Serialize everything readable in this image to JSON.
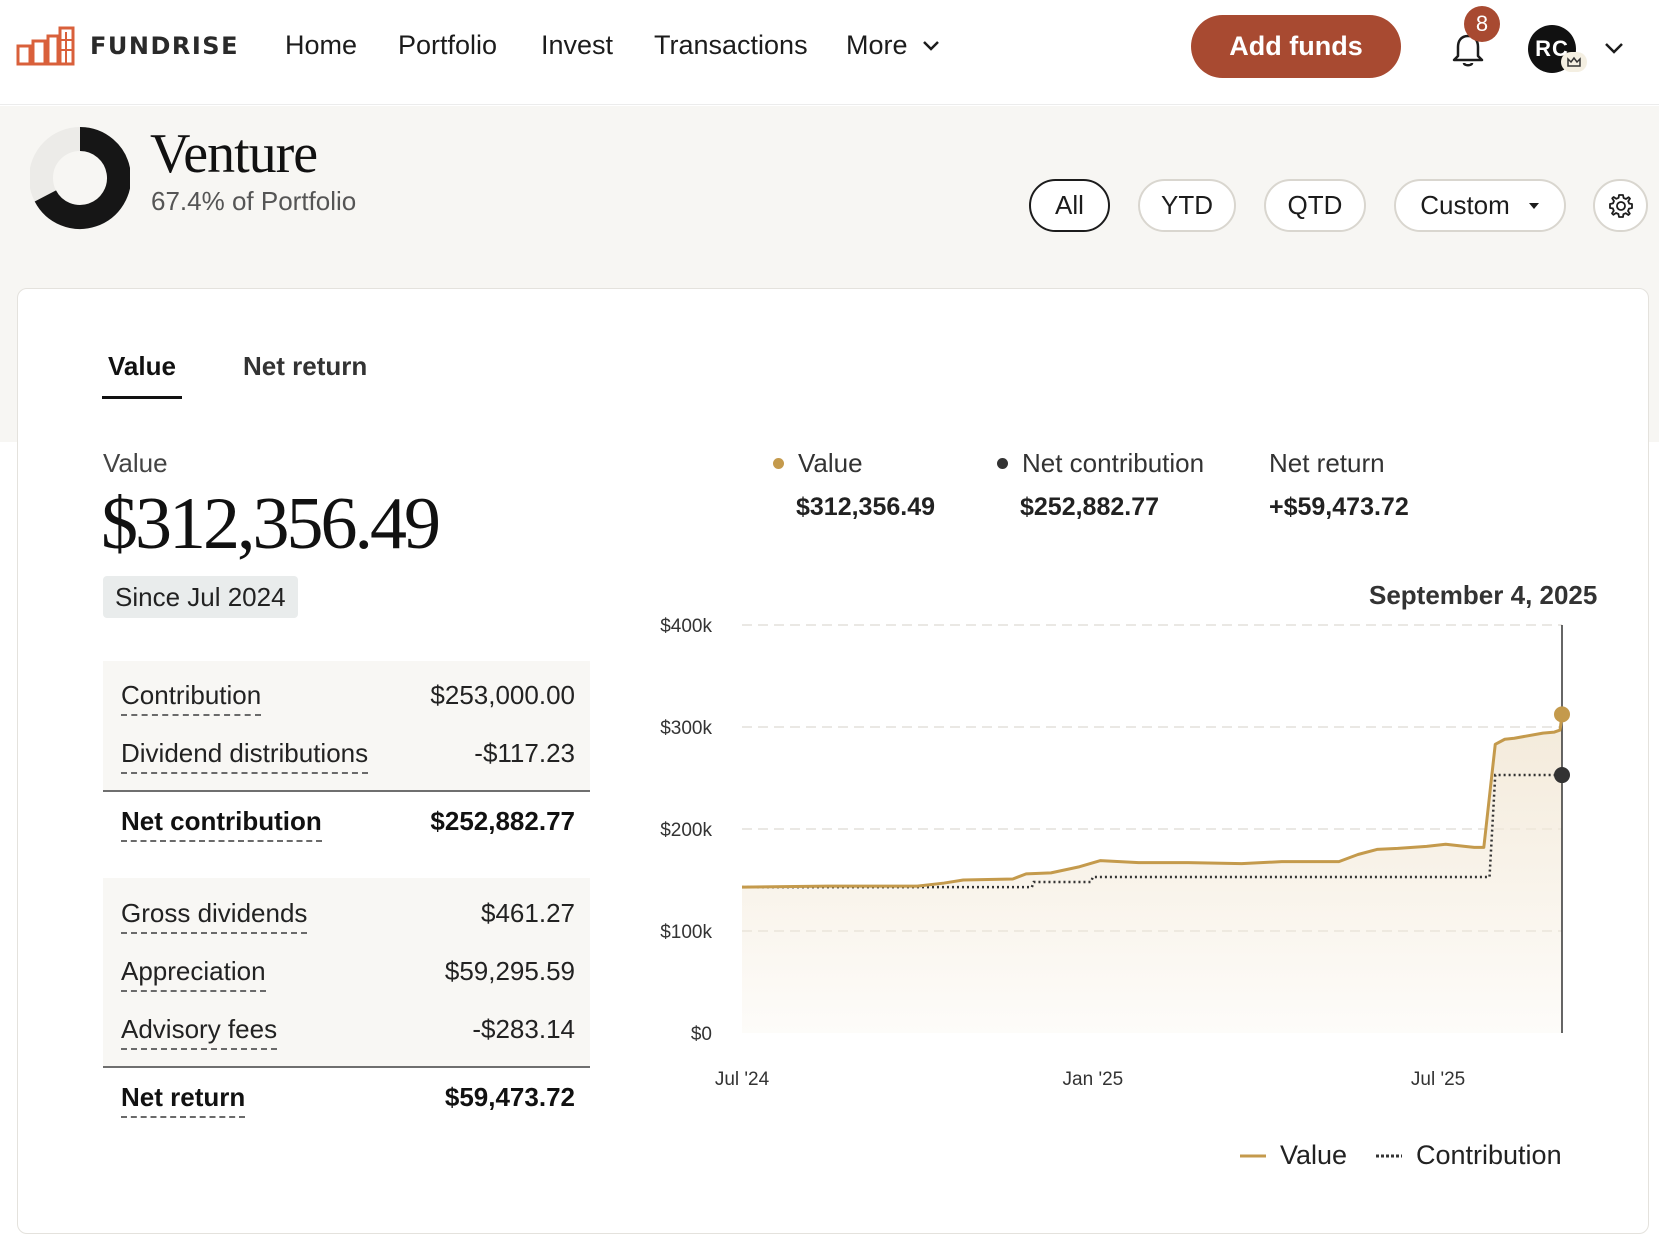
{
  "brand": {
    "name": "FUNDRISE"
  },
  "nav": {
    "home": "Home",
    "portfolio": "Portfolio",
    "invest": "Invest",
    "transactions": "Transactions",
    "more": "More",
    "add_funds": "Add funds",
    "notifications_count": "8",
    "avatar_initials": "RC"
  },
  "header": {
    "title": "Venture",
    "subtitle": "67.4% of Portfolio",
    "portfolio_share": 0.674,
    "filters": {
      "all": "All",
      "ytd": "YTD",
      "qtd": "QTD",
      "custom": "Custom"
    }
  },
  "tabs": {
    "value": "Value",
    "net_return": "Net return"
  },
  "summary": {
    "value_label": "Value",
    "value": "$312,356.49",
    "since": "Since Jul 2024"
  },
  "contribution_table": {
    "rows": [
      {
        "label": "Contribution",
        "value": "$253,000.00"
      },
      {
        "label": "Dividend distributions",
        "value": "-$117.23"
      }
    ],
    "total": {
      "label": "Net contribution",
      "value": "$252,882.77"
    }
  },
  "return_table": {
    "rows": [
      {
        "label": "Gross dividends",
        "value": "$461.27"
      },
      {
        "label": "Appreciation",
        "value": "$59,295.59"
      },
      {
        "label": "Advisory fees",
        "value": "-$283.14"
      }
    ],
    "total": {
      "label": "Net return",
      "value": "$59,473.72"
    }
  },
  "chart_header": {
    "value_label": "Value",
    "value": "$312,356.49",
    "net_contribution_label": "Net contribution",
    "net_contribution": "$252,882.77",
    "net_return_label": "Net return",
    "net_return": "+$59,473.72",
    "date": "September 4, 2025"
  },
  "colors": {
    "accent": "#a84a31",
    "value_line": "#c49a4c",
    "contribution_line": "#333333",
    "fill": "#f3e9d8"
  },
  "chart_data": {
    "type": "line",
    "x_ticks": [
      "Jul '24",
      "Jan '25",
      "Jul '25"
    ],
    "y_ticks": [
      "$400k",
      "$300k",
      "$200k",
      "$100k",
      "$0"
    ],
    "ylim": [
      0,
      400000
    ],
    "grid": true,
    "legend": {
      "position": "bottom-right",
      "items": [
        "Value",
        "Contribution"
      ]
    },
    "series": [
      {
        "name": "Value",
        "style": "solid",
        "points": [
          [
            "2024-07-01",
            143000
          ],
          [
            "2024-08-15",
            144000
          ],
          [
            "2024-10-01",
            144000
          ],
          [
            "2024-10-15",
            147000
          ],
          [
            "2024-10-25",
            150000
          ],
          [
            "2024-11-20",
            151000
          ],
          [
            "2024-11-27",
            156000
          ],
          [
            "2024-12-10",
            157000
          ],
          [
            "2024-12-25",
            163000
          ],
          [
            "2025-01-05",
            169000
          ],
          [
            "2025-01-25",
            167000
          ],
          [
            "2025-02-20",
            167000
          ],
          [
            "2025-03-20",
            166000
          ],
          [
            "2025-04-10",
            168000
          ],
          [
            "2025-05-10",
            168000
          ],
          [
            "2025-05-20",
            175000
          ],
          [
            "2025-05-30",
            180000
          ],
          [
            "2025-06-10",
            181000
          ],
          [
            "2025-06-25",
            183000
          ],
          [
            "2025-07-05",
            185000
          ],
          [
            "2025-07-15",
            183000
          ],
          [
            "2025-07-20",
            182000
          ],
          [
            "2025-07-25",
            182000
          ],
          [
            "2025-07-31",
            283000
          ],
          [
            "2025-08-05",
            288000
          ],
          [
            "2025-08-10",
            289000
          ],
          [
            "2025-08-25",
            294000
          ],
          [
            "2025-08-31",
            295000
          ],
          [
            "2025-09-03",
            297000
          ],
          [
            "2025-09-04",
            312356
          ]
        ]
      },
      {
        "name": "Contribution",
        "style": "dotted",
        "points": [
          [
            "2024-07-01",
            143000
          ],
          [
            "2024-11-30",
            143000
          ],
          [
            "2024-12-01",
            148000
          ],
          [
            "2024-12-31",
            148000
          ],
          [
            "2025-01-01",
            153000
          ],
          [
            "2025-07-28",
            153000
          ],
          [
            "2025-07-31",
            252883
          ],
          [
            "2025-09-04",
            252883
          ]
        ]
      }
    ],
    "hover_date": "September 4, 2025"
  },
  "legend": {
    "value": "Value",
    "contribution": "Contribution"
  }
}
